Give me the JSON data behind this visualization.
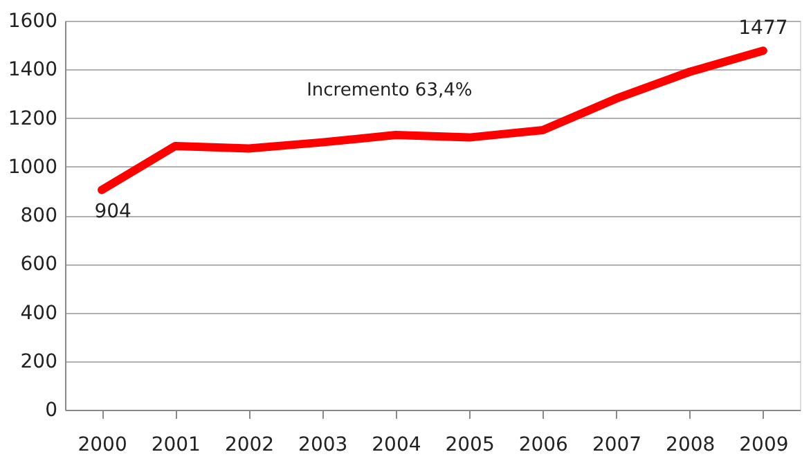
{
  "chart_data": {
    "type": "line",
    "categories": [
      "2000",
      "2001",
      "2002",
      "2003",
      "2004",
      "2005",
      "2006",
      "2007",
      "2008",
      "2009"
    ],
    "series": [
      {
        "color": "#ff0000",
        "values": [
          904,
          1085,
          1075,
          1100,
          1130,
          1120,
          1150,
          1280,
          1390,
          1477
        ],
        "value_labels": [
          "904",
          null,
          null,
          null,
          null,
          null,
          null,
          null,
          null,
          "1477"
        ]
      }
    ],
    "ylim": [
      0,
      1600
    ],
    "yticks": [
      0,
      200,
      400,
      600,
      800,
      1000,
      1200,
      1400,
      1600
    ],
    "grid": "y",
    "marker": "none",
    "line_style": "solid",
    "annotations": [
      "Incremento 63,4%"
    ]
  }
}
